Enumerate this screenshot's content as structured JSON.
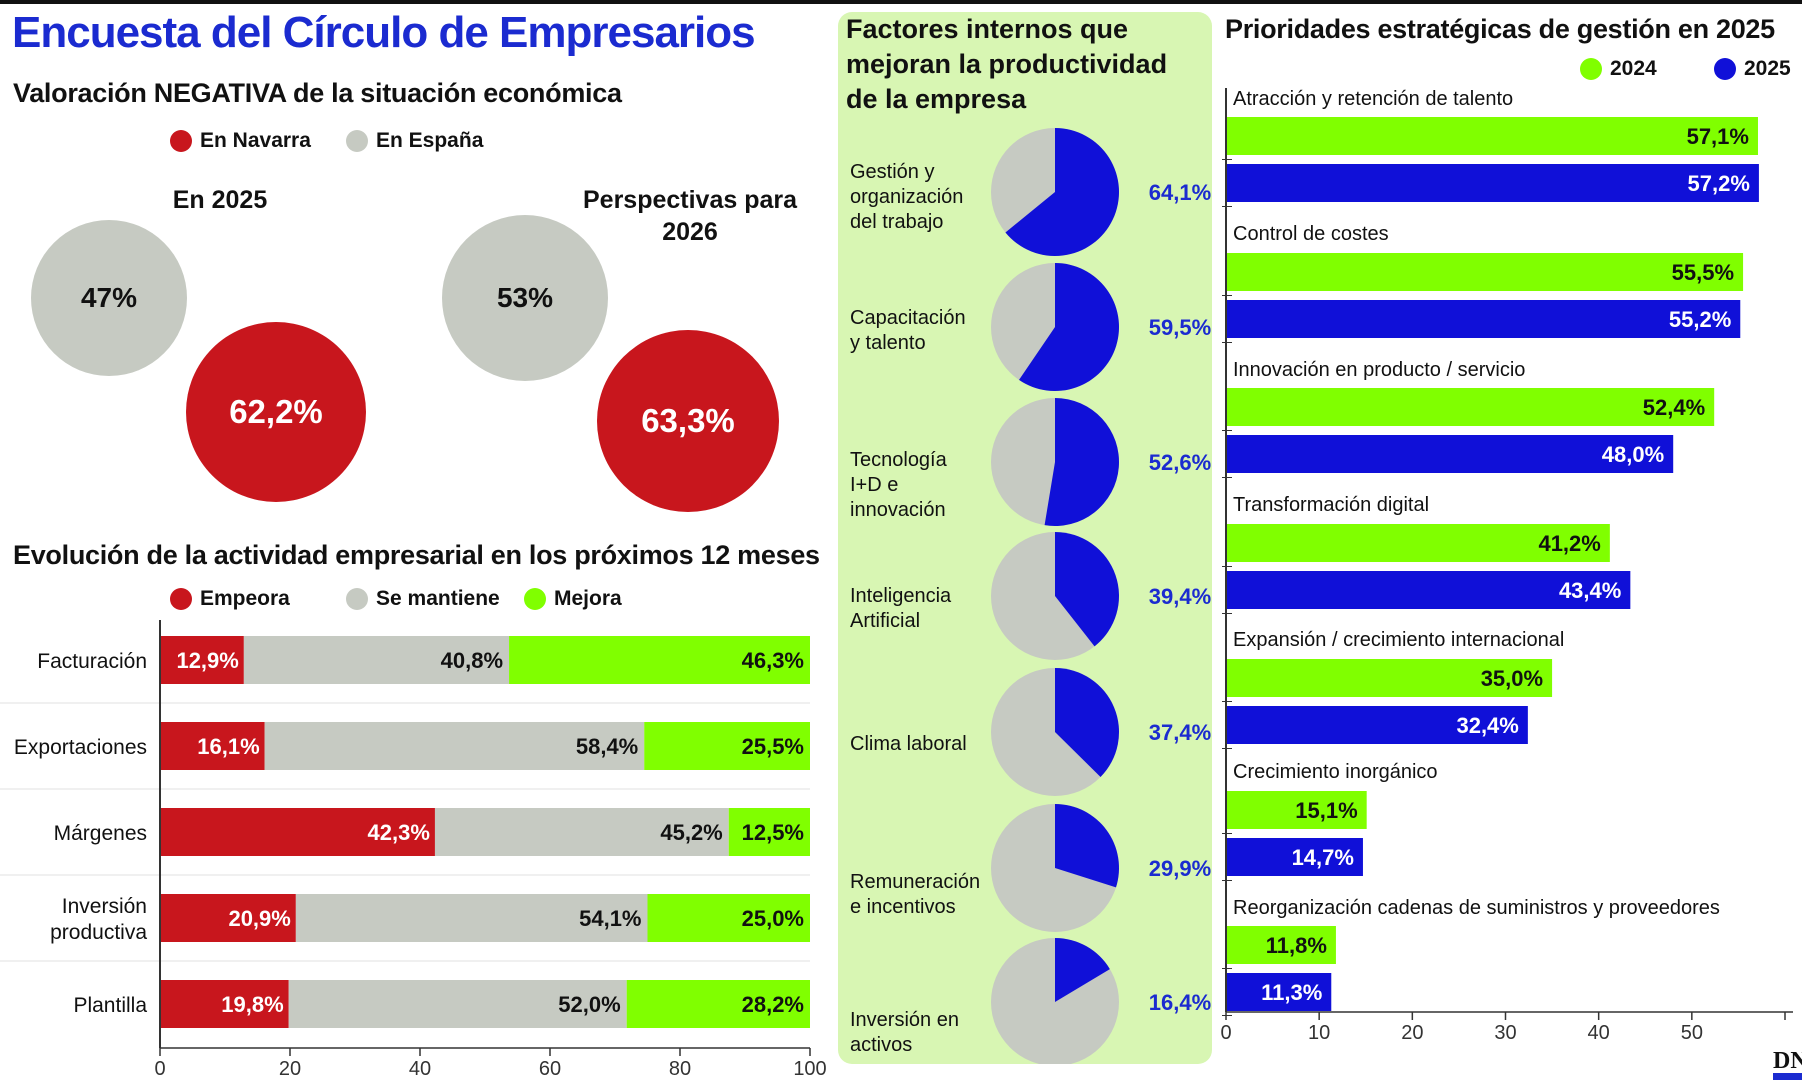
{
  "title": "Encuesta del Círculo de Empresarios",
  "negative": {
    "title": "Valoración NEGATIVA de la situación económica",
    "legend": [
      {
        "label": "En Navarra",
        "color": "#c8161d"
      },
      {
        "label": "En España",
        "color": "#c6cac2"
      }
    ],
    "y2025": {
      "title": "En 2025",
      "espana": "47%",
      "navarra": "62,2%"
    },
    "y2026": {
      "title": "Perspectivas para 2026",
      "espana": "53%",
      "navarra": "63,3%"
    }
  },
  "evolution": {
    "title": "Evolución de la actividad empresarial en los próximos 12 meses",
    "legend": [
      {
        "label": "Empeora",
        "color": "#c8161d"
      },
      {
        "label": "Se mantiene",
        "color": "#c6cac2"
      },
      {
        "label": "Mejora",
        "color": "#80ff00"
      }
    ]
  },
  "factors": {
    "title_lines": [
      "Factores internos que",
      "mejoran la productividad",
      "de la empresa"
    ]
  },
  "priorities": {
    "title": "Prioridades estratégicas de gestión en 2025",
    "legend": [
      {
        "label": "2024",
        "color": "#80ff00"
      },
      {
        "label": "2025",
        "color": "#1010d8"
      }
    ]
  },
  "source": "DN",
  "chart_data": [
    {
      "type": "bar",
      "stacked": true,
      "orientation": "horizontal",
      "title": "Evolución de la actividad empresarial en los próximos 12 meses",
      "categories": [
        "Facturación",
        "Exportaciones",
        "Márgenes",
        "Inversión productiva",
        "Plantilla"
      ],
      "category_lines": [
        [
          "Facturación"
        ],
        [
          "Exportaciones"
        ],
        [
          "Márgenes"
        ],
        [
          "Inversión",
          "productiva"
        ],
        [
          "Plantilla"
        ]
      ],
      "series": [
        {
          "name": "Empeora",
          "color": "#c8161d",
          "values": [
            12.9,
            16.1,
            42.3,
            20.9,
            19.8
          ],
          "labels": [
            "12,9%",
            "16,1%",
            "42,3%",
            "20,9%",
            "19,8%"
          ]
        },
        {
          "name": "Se mantiene",
          "color": "#c6cac2",
          "values": [
            40.8,
            58.4,
            45.2,
            54.1,
            52.0
          ],
          "labels": [
            "40,8%",
            "58,4%",
            "45,2%",
            "54,1%",
            "52,0%"
          ]
        },
        {
          "name": "Mejora",
          "color": "#80ff00",
          "values": [
            46.3,
            25.5,
            12.5,
            25.0,
            28.2
          ],
          "labels": [
            "46,3%",
            "25,5%",
            "12,5%",
            "25,0%",
            "28,2%"
          ]
        }
      ],
      "xlim": [
        0,
        100
      ],
      "xticks": [
        "0",
        "20",
        "40",
        "60",
        "80",
        "100"
      ]
    },
    {
      "type": "pie",
      "title": "Factores internos que mejoran la productividad de la empresa",
      "categories": [
        "Gestión y organización del trabajo",
        "Capacitación y talento",
        "Tecnología I+D e innovación",
        "Inteligencia Artificial",
        "Clima laboral",
        "Remuneración e incentivos",
        "Inversión en activos"
      ],
      "category_lines": [
        [
          "Gestión y",
          "organización",
          "del trabajo"
        ],
        [
          "Capacitación",
          "y talento"
        ],
        [
          "Tecnología",
          "I+D e",
          "innovación"
        ],
        [
          "Inteligencia",
          "Artificial"
        ],
        [
          "Clima laboral"
        ],
        [
          "Remuneración",
          "e incentivos"
        ],
        [
          "Inversión en",
          "activos"
        ]
      ],
      "values": [
        64.1,
        59.5,
        52.6,
        39.4,
        37.4,
        29.9,
        16.4
      ],
      "labels": [
        "64,1%",
        "59,5%",
        "52,6%",
        "39,4%",
        "37,4%",
        "29,9%",
        "16,4%"
      ],
      "colors": {
        "value": "#1010d8",
        "rest": "#c6cac2"
      }
    },
    {
      "type": "bar",
      "orientation": "horizontal",
      "title": "Prioridades estratégicas de gestión en 2025",
      "categories": [
        "Atracción y retención de talento",
        "Control de costes",
        "Innovación en producto / servicio",
        "Transformación digital",
        "Expansión / crecimiento internacional",
        "Crecimiento inorgánico",
        "Reorganización cadenas de suministros y proveedores"
      ],
      "series": [
        {
          "name": "2024",
          "color": "#80ff00",
          "values": [
            57.1,
            55.5,
            52.4,
            41.2,
            35.0,
            15.1,
            11.8
          ],
          "labels": [
            "57,1%",
            "55,5%",
            "52,4%",
            "41,2%",
            "35,0%",
            "15,1%",
            "11,8%"
          ]
        },
        {
          "name": "2025",
          "color": "#1010d8",
          "values": [
            57.2,
            55.2,
            48.0,
            43.4,
            32.4,
            14.7,
            11.3
          ],
          "labels": [
            "57,2%",
            "55,2%",
            "48,0%",
            "43,4%",
            "32,4%",
            "14,7%",
            "11,3%"
          ]
        }
      ],
      "xlim": [
        0,
        60
      ],
      "xticks": [
        "0",
        "10",
        "20",
        "30",
        "40",
        "50"
      ]
    }
  ]
}
